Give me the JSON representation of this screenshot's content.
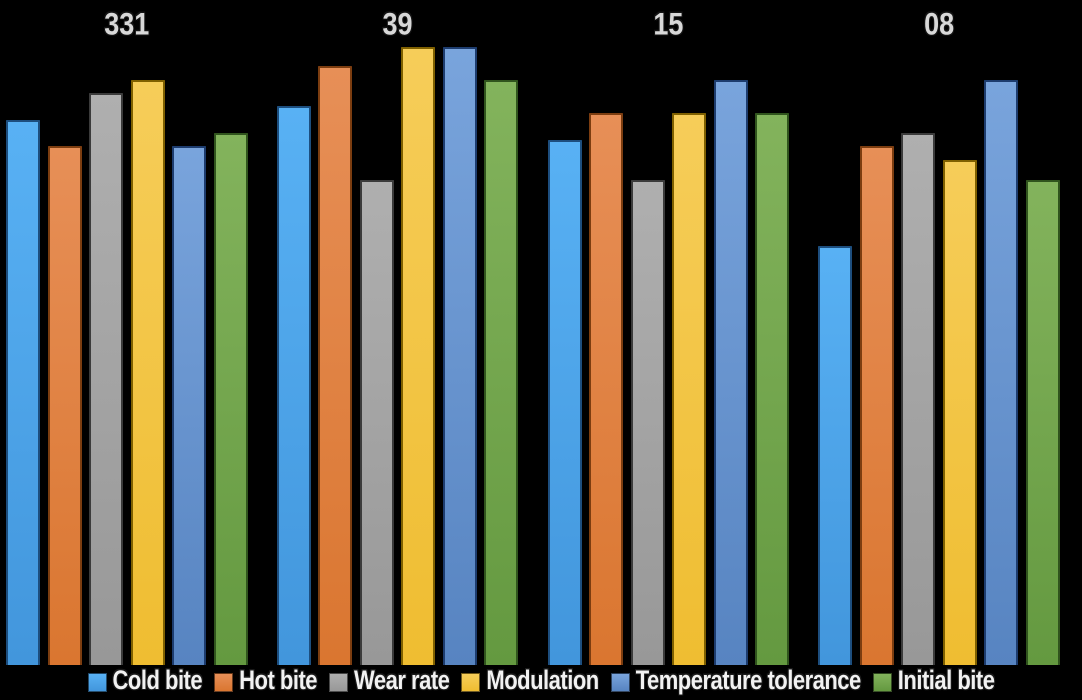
{
  "chart_data": {
    "type": "bar",
    "title": "",
    "xlabel": "",
    "ylabel": "",
    "background_color": "#000000",
    "grid": false,
    "axes_visible": false,
    "legend_position": "bottom",
    "category_label_color": "#d8d8d8",
    "legend_text_color": "#f2f2f2",
    "ylim": [
      0,
      10
    ],
    "categories": [
      "331",
      "39",
      "15",
      "08"
    ],
    "series": [
      {
        "name": "Cold bite",
        "color": "#4FA9F0",
        "color_top": "#58B1F4",
        "color_bottom": "#4296DC",
        "border_color": "#1D4E7E",
        "values": [
          8.2,
          8.4,
          7.9,
          6.3
        ]
      },
      {
        "name": "Hot bite",
        "color": "#E0823F",
        "color_top": "#E78F57",
        "color_bottom": "#DA7630",
        "border_color": "#7C3D10",
        "values": [
          7.8,
          9.0,
          8.3,
          7.8
        ]
      },
      {
        "name": "Wear rate",
        "color": "#A6A6A6",
        "color_top": "#AFAFAF",
        "color_bottom": "#989898",
        "border_color": "#3B3B3B",
        "values": [
          8.6,
          7.3,
          7.3,
          8.0
        ]
      },
      {
        "name": "Modulation",
        "color": "#F2C445",
        "color_top": "#F6CD59",
        "color_bottom": "#EFBD31",
        "border_color": "#7F6000",
        "values": [
          8.8,
          9.3,
          8.3,
          7.6
        ]
      },
      {
        "name": "Temperature tolerance",
        "color": "#6697D2",
        "color_top": "#79A4DC",
        "color_bottom": "#5784C1",
        "border_color": "#1D3C6E",
        "values": [
          7.8,
          9.3,
          8.8,
          8.8
        ]
      },
      {
        "name": "Initial bite",
        "color": "#74A64E",
        "color_top": "#83B35C",
        "color_bottom": "#649940",
        "border_color": "#30541D",
        "values": [
          8.0,
          8.8,
          8.3,
          7.3
        ]
      }
    ]
  }
}
